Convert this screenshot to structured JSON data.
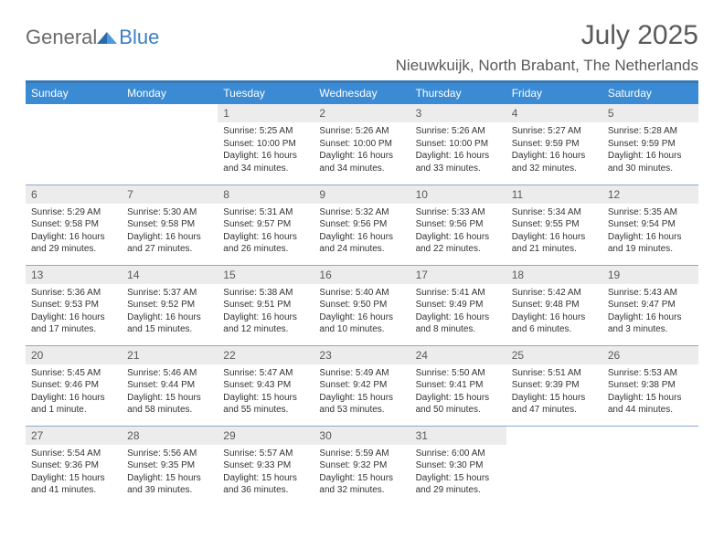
{
  "logo": {
    "text_general": "General",
    "text_blue": "Blue"
  },
  "title": "July 2025",
  "location": "Nieuwkuijk, North Brabant, The Netherlands",
  "columns": [
    "Sunday",
    "Monday",
    "Tuesday",
    "Wednesday",
    "Thursday",
    "Friday",
    "Saturday"
  ],
  "labels": {
    "sunrise": "Sunrise:",
    "sunset": "Sunset:",
    "daylight": "Daylight:"
  },
  "weeks": [
    [
      null,
      null,
      {
        "n": "1",
        "sr": "5:25 AM",
        "ss": "10:00 PM",
        "dl": "16 hours and 34 minutes."
      },
      {
        "n": "2",
        "sr": "5:26 AM",
        "ss": "10:00 PM",
        "dl": "16 hours and 34 minutes."
      },
      {
        "n": "3",
        "sr": "5:26 AM",
        "ss": "10:00 PM",
        "dl": "16 hours and 33 minutes."
      },
      {
        "n": "4",
        "sr": "5:27 AM",
        "ss": "9:59 PM",
        "dl": "16 hours and 32 minutes."
      },
      {
        "n": "5",
        "sr": "5:28 AM",
        "ss": "9:59 PM",
        "dl": "16 hours and 30 minutes."
      }
    ],
    [
      {
        "n": "6",
        "sr": "5:29 AM",
        "ss": "9:58 PM",
        "dl": "16 hours and 29 minutes."
      },
      {
        "n": "7",
        "sr": "5:30 AM",
        "ss": "9:58 PM",
        "dl": "16 hours and 27 minutes."
      },
      {
        "n": "8",
        "sr": "5:31 AM",
        "ss": "9:57 PM",
        "dl": "16 hours and 26 minutes."
      },
      {
        "n": "9",
        "sr": "5:32 AM",
        "ss": "9:56 PM",
        "dl": "16 hours and 24 minutes."
      },
      {
        "n": "10",
        "sr": "5:33 AM",
        "ss": "9:56 PM",
        "dl": "16 hours and 22 minutes."
      },
      {
        "n": "11",
        "sr": "5:34 AM",
        "ss": "9:55 PM",
        "dl": "16 hours and 21 minutes."
      },
      {
        "n": "12",
        "sr": "5:35 AM",
        "ss": "9:54 PM",
        "dl": "16 hours and 19 minutes."
      }
    ],
    [
      {
        "n": "13",
        "sr": "5:36 AM",
        "ss": "9:53 PM",
        "dl": "16 hours and 17 minutes."
      },
      {
        "n": "14",
        "sr": "5:37 AM",
        "ss": "9:52 PM",
        "dl": "16 hours and 15 minutes."
      },
      {
        "n": "15",
        "sr": "5:38 AM",
        "ss": "9:51 PM",
        "dl": "16 hours and 12 minutes."
      },
      {
        "n": "16",
        "sr": "5:40 AM",
        "ss": "9:50 PM",
        "dl": "16 hours and 10 minutes."
      },
      {
        "n": "17",
        "sr": "5:41 AM",
        "ss": "9:49 PM",
        "dl": "16 hours and 8 minutes."
      },
      {
        "n": "18",
        "sr": "5:42 AM",
        "ss": "9:48 PM",
        "dl": "16 hours and 6 minutes."
      },
      {
        "n": "19",
        "sr": "5:43 AM",
        "ss": "9:47 PM",
        "dl": "16 hours and 3 minutes."
      }
    ],
    [
      {
        "n": "20",
        "sr": "5:45 AM",
        "ss": "9:46 PM",
        "dl": "16 hours and 1 minute."
      },
      {
        "n": "21",
        "sr": "5:46 AM",
        "ss": "9:44 PM",
        "dl": "15 hours and 58 minutes."
      },
      {
        "n": "22",
        "sr": "5:47 AM",
        "ss": "9:43 PM",
        "dl": "15 hours and 55 minutes."
      },
      {
        "n": "23",
        "sr": "5:49 AM",
        "ss": "9:42 PM",
        "dl": "15 hours and 53 minutes."
      },
      {
        "n": "24",
        "sr": "5:50 AM",
        "ss": "9:41 PM",
        "dl": "15 hours and 50 minutes."
      },
      {
        "n": "25",
        "sr": "5:51 AM",
        "ss": "9:39 PM",
        "dl": "15 hours and 47 minutes."
      },
      {
        "n": "26",
        "sr": "5:53 AM",
        "ss": "9:38 PM",
        "dl": "15 hours and 44 minutes."
      }
    ],
    [
      {
        "n": "27",
        "sr": "5:54 AM",
        "ss": "9:36 PM",
        "dl": "15 hours and 41 minutes."
      },
      {
        "n": "28",
        "sr": "5:56 AM",
        "ss": "9:35 PM",
        "dl": "15 hours and 39 minutes."
      },
      {
        "n": "29",
        "sr": "5:57 AM",
        "ss": "9:33 PM",
        "dl": "15 hours and 36 minutes."
      },
      {
        "n": "30",
        "sr": "5:59 AM",
        "ss": "9:32 PM",
        "dl": "15 hours and 32 minutes."
      },
      {
        "n": "31",
        "sr": "6:00 AM",
        "ss": "9:30 PM",
        "dl": "15 hours and 29 minutes."
      },
      null,
      null
    ]
  ],
  "colors": {
    "header_bg": "#3b8bd4",
    "header_rule": "#3778b7",
    "row_rule": "#8aa9c9",
    "daynum_bg": "#ececec",
    "text_gray": "#5a5a5a"
  }
}
